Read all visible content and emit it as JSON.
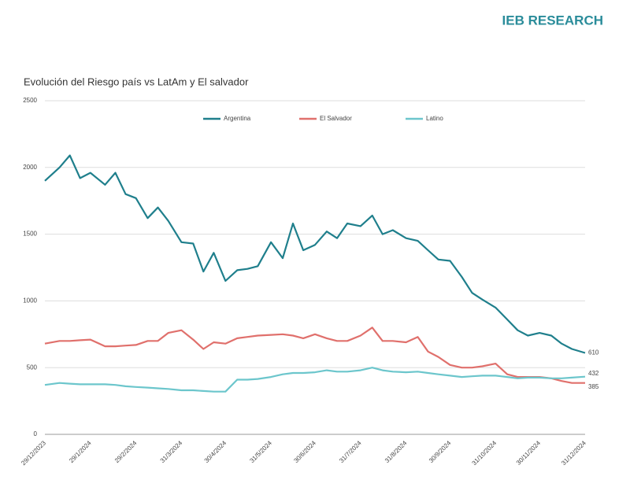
{
  "brand": "IEB RESEARCH",
  "chart_data": {
    "type": "line",
    "title": "Evolución del Riesgo país vs LatAm y El salvador",
    "x": [
      "29/12/2023",
      "8/1/2024",
      "15/1/2024",
      "22/1/2024",
      "29/1/2024",
      "8/2/2024",
      "15/2/2024",
      "22/2/2024",
      "29/2/2024",
      "8/3/2024",
      "15/3/2024",
      "22/3/2024",
      "31/3/2024",
      "8/4/2024",
      "15/4/2024",
      "22/4/2024",
      "30/4/2024",
      "8/5/2024",
      "15/5/2024",
      "22/5/2024",
      "31/5/2024",
      "8/6/2024",
      "15/6/2024",
      "22/6/2024",
      "30/6/2024",
      "8/7/2024",
      "15/7/2024",
      "22/7/2024",
      "31/7/2024",
      "8/8/2024",
      "15/8/2024",
      "22/8/2024",
      "31/8/2024",
      "8/9/2024",
      "15/9/2024",
      "22/9/2024",
      "30/9/2024",
      "8/10/2024",
      "15/10/2024",
      "22/10/2024",
      "31/10/2024",
      "8/11/2024",
      "15/11/2024",
      "22/11/2024",
      "30/11/2024",
      "8/12/2024",
      "15/12/2024",
      "22/12/2024",
      "31/12/2024"
    ],
    "series": [
      {
        "name": "Argentina",
        "color": "#1f7f8c",
        "values": [
          1900,
          2000,
          2090,
          1920,
          1960,
          1870,
          1960,
          1800,
          1770,
          1620,
          1700,
          1600,
          1440,
          1430,
          1220,
          1360,
          1150,
          1230,
          1240,
          1260,
          1440,
          1320,
          1580,
          1380,
          1420,
          1520,
          1470,
          1580,
          1560,
          1640,
          1500,
          1530,
          1470,
          1450,
          1380,
          1310,
          1300,
          1180,
          1060,
          1010,
          950,
          860,
          780,
          740,
          760,
          740,
          680,
          640,
          610
        ]
      },
      {
        "name": "El Salvador",
        "color": "#e0706c",
        "values": [
          680,
          700,
          700,
          705,
          710,
          660,
          660,
          665,
          670,
          700,
          700,
          760,
          780,
          710,
          640,
          690,
          680,
          720,
          730,
          740,
          745,
          750,
          740,
          720,
          750,
          720,
          700,
          700,
          740,
          800,
          700,
          700,
          690,
          730,
          620,
          580,
          520,
          500,
          500,
          510,
          530,
          450,
          430,
          430,
          430,
          420,
          400,
          385,
          385
        ]
      },
      {
        "name": "Latino",
        "color": "#6cc6cc",
        "values": [
          370,
          385,
          380,
          375,
          375,
          375,
          370,
          360,
          355,
          350,
          345,
          340,
          330,
          330,
          325,
          320,
          320,
          410,
          410,
          415,
          430,
          450,
          460,
          460,
          465,
          480,
          470,
          470,
          480,
          500,
          480,
          470,
          465,
          470,
          460,
          450,
          440,
          430,
          435,
          440,
          440,
          430,
          420,
          425,
          425,
          420,
          420,
          425,
          432
        ]
      }
    ],
    "ylim": [
      0,
      2500
    ],
    "yticks": [
      0,
      500,
      1000,
      1500,
      2000,
      2500
    ],
    "xticks": [
      "29/12/2023",
      "29/1/2024",
      "29/2/2024",
      "31/3/2024",
      "30/4/2024",
      "31/5/2024",
      "30/6/2024",
      "31/7/2024",
      "31/8/2024",
      "30/9/2024",
      "31/10/2024",
      "30/11/2024",
      "31/12/2024"
    ],
    "grid": true
  }
}
